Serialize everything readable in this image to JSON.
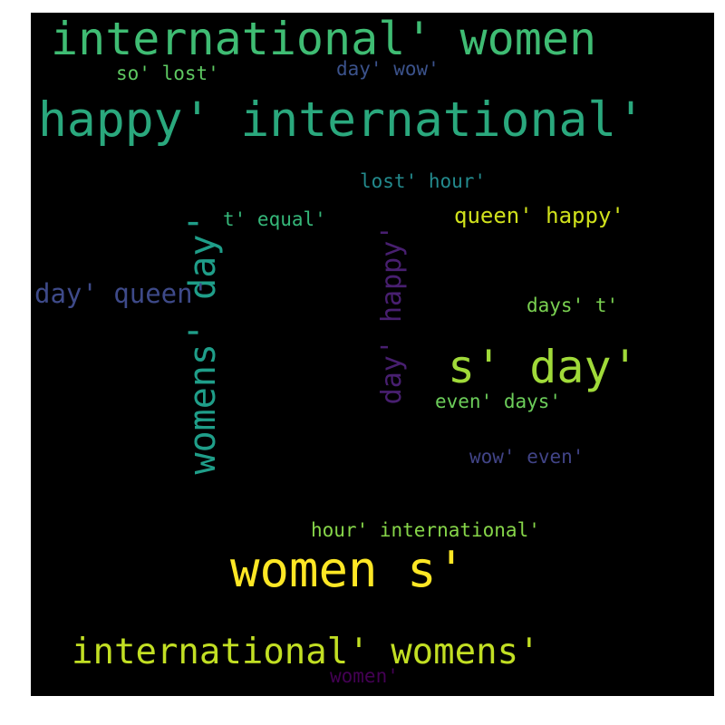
{
  "colors": {
    "background": "#000000",
    "page": "#ffffff"
  },
  "words": [
    {
      "text": "international' women",
      "color": "#3fbc73"
    },
    {
      "text": "so' lost'",
      "color": "#5ec962"
    },
    {
      "text": "day' wow'",
      "color": "#3b528b"
    },
    {
      "text": "happy' international'",
      "color": "#2aa87d"
    },
    {
      "text": "lost' hour'",
      "color": "#238a8d"
    },
    {
      "text": "queen' happy'",
      "color": "#d0e11c"
    },
    {
      "text": "t' equal'",
      "color": "#35b779"
    },
    {
      "text": "womens' day'",
      "color": "#1f9e89"
    },
    {
      "text": "day' happy'",
      "color": "#481f70"
    },
    {
      "text": "day' queen'",
      "color": "#3e4a89"
    },
    {
      "text": "days' t'",
      "color": "#7ad151"
    },
    {
      "text": "s' day'",
      "color": "#a0da39"
    },
    {
      "text": "even' days'",
      "color": "#6ccd5a"
    },
    {
      "text": "wow' even'",
      "color": "#414487"
    },
    {
      "text": "hour' international'",
      "color": "#86d549"
    },
    {
      "text": "women s'",
      "color": "#fde725"
    },
    {
      "text": "international' womens'",
      "color": "#c2df23"
    },
    {
      "text": "women'",
      "color": "#440154"
    }
  ]
}
